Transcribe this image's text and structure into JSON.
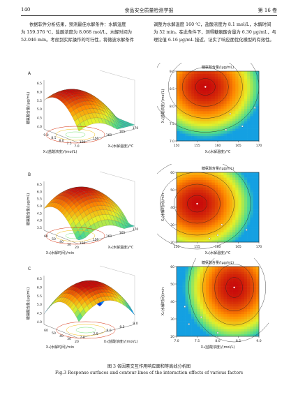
{
  "header": {
    "page_number": "140",
    "journal": "食品安全质量检测学报",
    "volume": "第 16 卷"
  },
  "text": {
    "left": [
      "依据软件分析结果，预测最佳水解条件：水解温度",
      "为 159.376 ℃，盐酸浓度为 8.068 mol/L，水解时间为",
      "52.046 min。考虑到实际操作的可行性，将微波水解条件"
    ],
    "right": [
      "调整为水解温度 160 ℃，盐酸浓度为 8.1 mol/L，水解时间",
      "为 52 min。在此条件下，测得糖氨酸含量为 6.30 μg/mL，与",
      "理论值 6.16 μg/mL 接近，证实了响应面优化模型的有效性。"
    ]
  },
  "caption": {
    "cn": "图 3   各因素交互作用响应面和等高线分析图",
    "en": "Fig.3    Response surfaces and contour lines of the interaction effects of various factors"
  },
  "chart_data": [
    {
      "type": "surface",
      "panel": "A",
      "zlabel": "糖氨酸含量/(μg/mL)",
      "z_ticks": [
        "6.5",
        "6.0",
        "5.5",
        "5.0",
        "4.5",
        "4.0"
      ],
      "xlabel": "X₁(盐酸浓度)/(mol/L)",
      "x_ticks": [
        "9.0",
        "8.5",
        "8.0",
        "7.5",
        "7.0"
      ],
      "ylabel": "X₂(水解温度)/℃",
      "y_ticks": [
        "150",
        "155",
        "160",
        "165",
        "170"
      ]
    },
    {
      "type": "contour",
      "panel": "A",
      "title": "糖氨酸含量/(μg/mL)",
      "xlabel": "X₂(水解温度)/℃",
      "ylabel": "X₁(盐酸浓度)/(mol/L)",
      "x_ticks": [
        "150",
        "155",
        "160",
        "165",
        "170"
      ],
      "y_ticks": [
        "9.0",
        "8.5",
        "8.0",
        "7.5",
        "7.0"
      ],
      "xlim": [
        150,
        170
      ],
      "ylim": [
        7.0,
        9.0
      ],
      "max_point": [
        157,
        8.55
      ],
      "points": [
        [
          163,
          7.78
        ],
        [
          166,
          7.42
        ],
        [
          162,
          7.32
        ],
        [
          169,
          7.95
        ]
      ]
    },
    {
      "type": "surface",
      "panel": "B",
      "zlabel": "糖氨酸含量/(μg/mL)",
      "z_ticks": [
        "6.5",
        "6.0",
        "5.5",
        "5.0",
        "4.5",
        "4.0",
        "3.5"
      ],
      "xlabel": "X₃(水解时间)/min",
      "x_ticks": [
        "60",
        "50",
        "40",
        "30",
        "20"
      ],
      "ylabel": "X₂(水解温度)/℃",
      "y_ticks": [
        "150",
        "155",
        "160",
        "165",
        "170"
      ]
    },
    {
      "type": "contour",
      "panel": "B",
      "title": "糖氨酸含量/(μg/mL)",
      "xlabel": "X₂(水解温度)/℃",
      "ylabel": "X₃(水解时间)/min",
      "x_ticks": [
        "150",
        "155",
        "160",
        "165",
        "170"
      ],
      "y_ticks": [
        "60",
        "50",
        "40",
        "30",
        "20"
      ],
      "xlim": [
        150,
        170
      ],
      "ylim": [
        20,
        60
      ],
      "max_point": [
        155,
        42
      ],
      "points": [
        [
          161,
          30
        ],
        [
          167,
          27
        ],
        [
          160,
          24
        ],
        [
          158,
          22
        ]
      ]
    },
    {
      "type": "surface",
      "panel": "C",
      "zlabel": "糖氨酸含量/(μg/mL)",
      "z_ticks": [
        "6.5",
        "6.0",
        "5.5",
        "5.0",
        "4.5",
        "4.0"
      ],
      "xlabel": "X₃(水解时间)/min",
      "x_ticks": [
        "60",
        "50",
        "40",
        "30",
        "20"
      ],
      "ylabel": "X₁(盐酸浓度)/(mol/L)",
      "y_ticks": [
        "7.0",
        "7.5",
        "8.0",
        "8.5",
        "9.0"
      ]
    },
    {
      "type": "contour",
      "panel": "C",
      "title": "糖氨酸含量/(μg/mL)",
      "xlabel": "X₁(盐酸浓度)/(mol/L)",
      "ylabel": "X₃(水解时间)/min",
      "x_ticks": [
        "7.0",
        "7.5",
        "8.0",
        "8.5",
        "9.0"
      ],
      "y_ticks": [
        "60",
        "50",
        "40",
        "30",
        "20"
      ],
      "xlim": [
        7.0,
        9.0
      ],
      "ylim": [
        20,
        60
      ],
      "max_point": [
        8.4,
        48
      ],
      "points": [
        [
          7.6,
          31
        ],
        [
          7.3,
          27
        ],
        [
          8.0,
          22
        ],
        [
          7.2,
          37
        ]
      ]
    }
  ]
}
